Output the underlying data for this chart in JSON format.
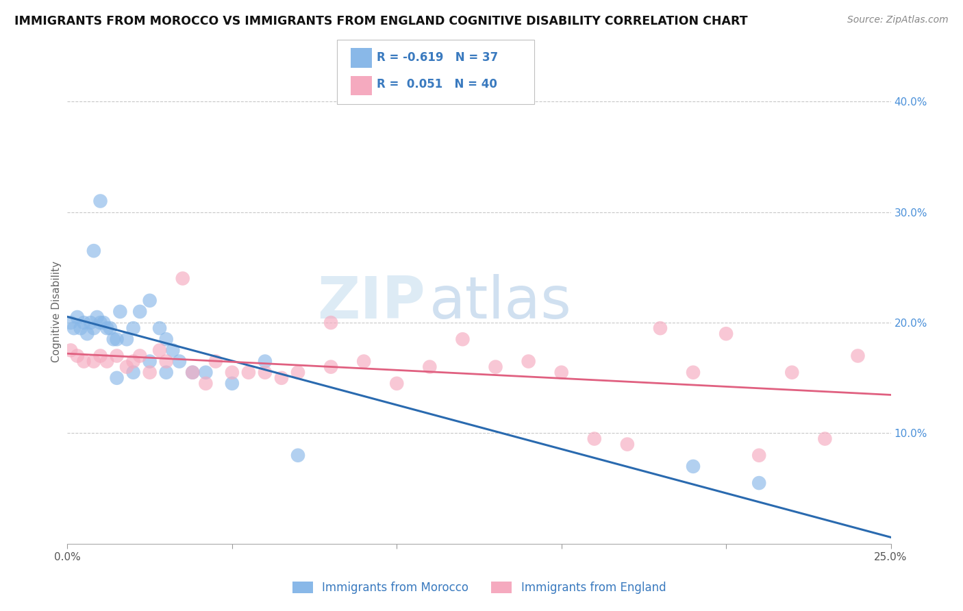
{
  "title": "IMMIGRANTS FROM MOROCCO VS IMMIGRANTS FROM ENGLAND COGNITIVE DISABILITY CORRELATION CHART",
  "source": "Source: ZipAtlas.com",
  "ylabel": "Cognitive Disability",
  "xlim": [
    0.0,
    0.25
  ],
  "ylim": [
    0.0,
    0.42
  ],
  "xticks": [
    0.0,
    0.05,
    0.1,
    0.15,
    0.2,
    0.25
  ],
  "yticks": [
    0.0,
    0.1,
    0.2,
    0.3,
    0.4
  ],
  "xticklabels": [
    "0.0%",
    "",
    "",
    "",
    "",
    "25.0%"
  ],
  "yticklabels_right": [
    "",
    "10.0%",
    "20.0%",
    "30.0%",
    "40.0%"
  ],
  "morocco_R": -0.619,
  "morocco_N": 37,
  "england_R": 0.051,
  "england_N": 40,
  "morocco_color": "#89b8e8",
  "england_color": "#f5aabf",
  "morocco_line_color": "#2a6aaf",
  "england_line_color": "#e06080",
  "background_color": "#ffffff",
  "grid_color": "#c8c8c8",
  "morocco_x": [
    0.001,
    0.002,
    0.003,
    0.004,
    0.005,
    0.006,
    0.007,
    0.008,
    0.009,
    0.01,
    0.011,
    0.012,
    0.013,
    0.014,
    0.015,
    0.016,
    0.018,
    0.02,
    0.022,
    0.025,
    0.028,
    0.03,
    0.032,
    0.034,
    0.038,
    0.042,
    0.05,
    0.06,
    0.07,
    0.03,
    0.025,
    0.02,
    0.015,
    0.01,
    0.008,
    0.19,
    0.21
  ],
  "morocco_y": [
    0.2,
    0.195,
    0.205,
    0.195,
    0.2,
    0.19,
    0.2,
    0.195,
    0.205,
    0.2,
    0.2,
    0.195,
    0.195,
    0.185,
    0.185,
    0.21,
    0.185,
    0.195,
    0.21,
    0.22,
    0.195,
    0.185,
    0.175,
    0.165,
    0.155,
    0.155,
    0.145,
    0.165,
    0.08,
    0.155,
    0.165,
    0.155,
    0.15,
    0.31,
    0.265,
    0.07,
    0.055
  ],
  "england_x": [
    0.001,
    0.003,
    0.005,
    0.008,
    0.01,
    0.012,
    0.015,
    0.018,
    0.02,
    0.022,
    0.025,
    0.028,
    0.03,
    0.035,
    0.038,
    0.042,
    0.045,
    0.05,
    0.055,
    0.06,
    0.065,
    0.07,
    0.08,
    0.09,
    0.1,
    0.11,
    0.12,
    0.13,
    0.14,
    0.15,
    0.16,
    0.17,
    0.18,
    0.19,
    0.2,
    0.21,
    0.22,
    0.23,
    0.24,
    0.08
  ],
  "england_y": [
    0.175,
    0.17,
    0.165,
    0.165,
    0.17,
    0.165,
    0.17,
    0.16,
    0.165,
    0.17,
    0.155,
    0.175,
    0.165,
    0.24,
    0.155,
    0.145,
    0.165,
    0.155,
    0.155,
    0.155,
    0.15,
    0.155,
    0.16,
    0.165,
    0.145,
    0.16,
    0.185,
    0.16,
    0.165,
    0.155,
    0.095,
    0.09,
    0.195,
    0.155,
    0.19,
    0.08,
    0.155,
    0.095,
    0.17,
    0.2
  ],
  "watermark_zip": "ZIP",
  "watermark_atlas": "atlas",
  "legend_label_color": "#3a7abf"
}
